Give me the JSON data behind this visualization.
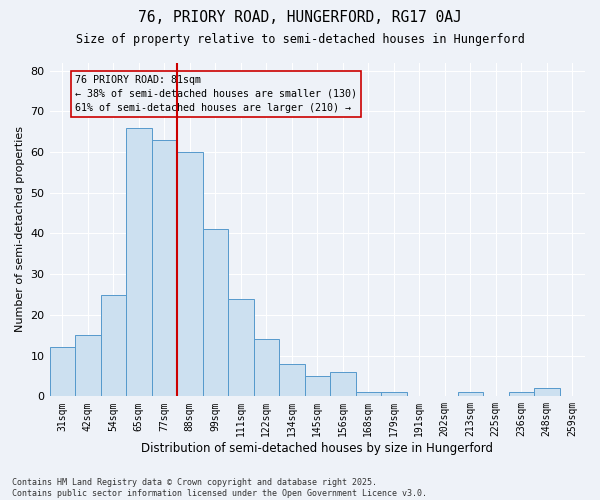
{
  "title1": "76, PRIORY ROAD, HUNGERFORD, RG17 0AJ",
  "title2": "Size of property relative to semi-detached houses in Hungerford",
  "xlabel": "Distribution of semi-detached houses by size in Hungerford",
  "ylabel": "Number of semi-detached properties",
  "categories": [
    "31sqm",
    "42sqm",
    "54sqm",
    "65sqm",
    "77sqm",
    "88sqm",
    "99sqm",
    "111sqm",
    "122sqm",
    "134sqm",
    "145sqm",
    "156sqm",
    "168sqm",
    "179sqm",
    "191sqm",
    "202sqm",
    "213sqm",
    "225sqm",
    "236sqm",
    "248sqm",
    "259sqm"
  ],
  "values": [
    12,
    15,
    25,
    66,
    63,
    60,
    41,
    24,
    14,
    8,
    5,
    6,
    1,
    1,
    0,
    0,
    1,
    0,
    1,
    2,
    0
  ],
  "bar_color": "#cce0f0",
  "bar_edge_color": "#5599cc",
  "vline_color": "#cc0000",
  "property_label": "76 PRIORY ROAD: 81sqm",
  "pct_smaller": "38%",
  "n_smaller": 130,
  "pct_larger": "61%",
  "n_larger": 210,
  "annotation_box_color": "#cc0000",
  "ylim": [
    0,
    82
  ],
  "yticks": [
    0,
    10,
    20,
    30,
    40,
    50,
    60,
    70,
    80
  ],
  "background_color": "#eef2f8",
  "footer1": "Contains HM Land Registry data © Crown copyright and database right 2025.",
  "footer2": "Contains public sector information licensed under the Open Government Licence v3.0."
}
